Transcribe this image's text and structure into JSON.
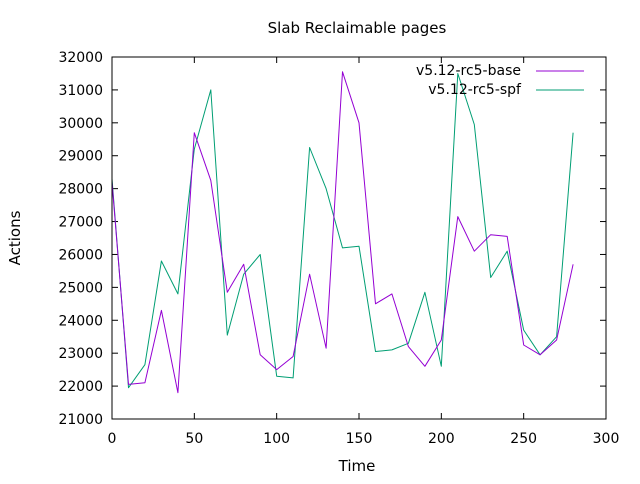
{
  "chart_data": {
    "type": "line",
    "title": "Slab Reclaimable pages",
    "xlabel": "Time",
    "ylabel": "Actions",
    "xlim": [
      0,
      300
    ],
    "ylim": [
      21000,
      32000
    ],
    "xticks": [
      0,
      50,
      100,
      150,
      200,
      250,
      300
    ],
    "yticks": [
      21000,
      22000,
      23000,
      24000,
      25000,
      26000,
      27000,
      28000,
      29000,
      30000,
      31000,
      32000
    ],
    "grid": false,
    "legend_position": "top-right",
    "x": [
      0,
      10,
      20,
      30,
      40,
      50,
      60,
      70,
      80,
      90,
      100,
      110,
      120,
      130,
      140,
      150,
      160,
      170,
      180,
      190,
      200,
      210,
      220,
      230,
      240,
      250,
      260,
      270,
      280
    ],
    "series": [
      {
        "name": "v5.12-rc5-base",
        "color": "#9400d3",
        "values": [
          28200,
          22050,
          22100,
          24300,
          21800,
          29700,
          28250,
          24850,
          25700,
          22950,
          22500,
          22900,
          25400,
          23150,
          31550,
          30000,
          24500,
          24800,
          23200,
          22600,
          23400,
          27150,
          26100,
          26600,
          26550,
          23250,
          22950,
          23400,
          25700
        ]
      },
      {
        "name": "v5.12-rc5-spf",
        "color": "#009e73",
        "values": [
          28300,
          21950,
          22650,
          25800,
          24800,
          29200,
          31000,
          23550,
          25400,
          26000,
          22300,
          22250,
          29250,
          28000,
          26200,
          26250,
          23050,
          23100,
          23300,
          24850,
          22600,
          31500,
          29950,
          25300,
          26100,
          23700,
          22950,
          23500,
          29700
        ]
      }
    ]
  }
}
